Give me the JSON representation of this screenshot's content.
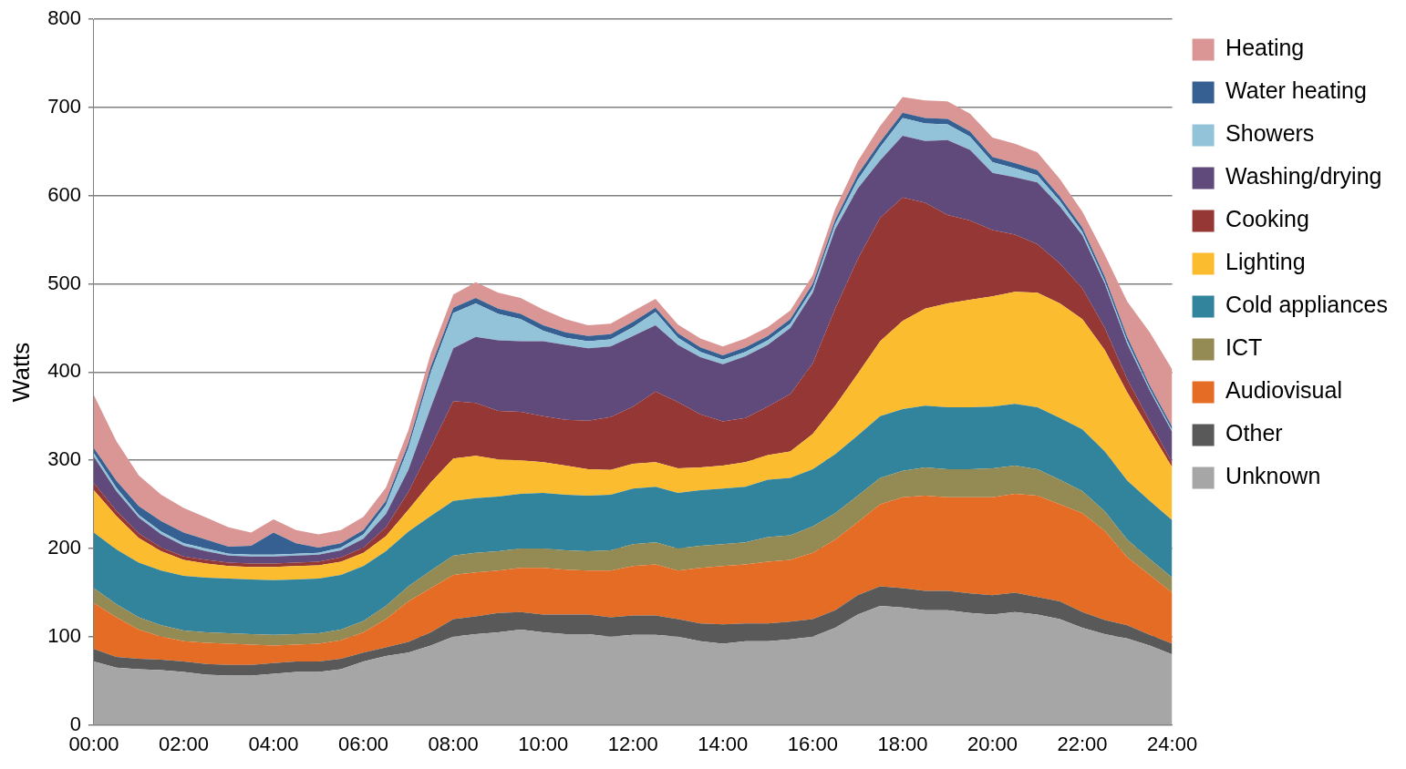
{
  "chart_data": {
    "type": "area",
    "stacked": true,
    "grid": true,
    "legend": "right",
    "y_label": "Watts",
    "ylim": [
      0,
      800
    ],
    "yticks": [
      0,
      100,
      200,
      300,
      400,
      500,
      600,
      700,
      800
    ],
    "categories": [
      "00:00",
      null,
      null,
      null,
      "02:00",
      null,
      null,
      null,
      "04:00",
      null,
      null,
      null,
      "06:00",
      null,
      null,
      null,
      "08:00",
      null,
      null,
      null,
      "10:00",
      null,
      null,
      null,
      "12:00",
      null,
      null,
      null,
      "14:00",
      null,
      null,
      null,
      "16:00",
      null,
      null,
      null,
      "18:00",
      null,
      null,
      null,
      "20:00",
      null,
      null,
      null,
      "22:00",
      null,
      null,
      null,
      "24:00"
    ],
    "series": [
      {
        "name": "Unknown",
        "color": "#a6a6a6",
        "values": [
          72,
          65,
          63,
          62,
          60,
          57,
          56,
          56,
          58,
          60,
          60,
          63,
          72,
          78,
          82,
          90,
          100,
          103,
          105,
          108,
          105,
          103,
          103,
          100,
          102,
          102,
          100,
          95,
          92,
          95,
          95,
          97,
          100,
          110,
          125,
          135,
          133,
          130,
          130,
          127,
          125,
          128,
          125,
          120,
          110,
          103,
          98,
          90,
          80
        ]
      },
      {
        "name": "Other",
        "color": "#595959",
        "values": [
          14,
          12,
          12,
          12,
          12,
          12,
          12,
          12,
          12,
          12,
          12,
          12,
          10,
          10,
          12,
          15,
          20,
          20,
          22,
          20,
          20,
          22,
          22,
          22,
          22,
          22,
          20,
          20,
          22,
          20,
          20,
          20,
          20,
          20,
          22,
          22,
          22,
          22,
          22,
          22,
          22,
          22,
          20,
          20,
          18,
          16,
          15,
          12,
          12
        ]
      },
      {
        "name": "Audiovisual",
        "color": "#e46c24",
        "values": [
          52,
          45,
          33,
          26,
          23,
          24,
          24,
          23,
          20,
          19,
          20,
          21,
          23,
          32,
          46,
          50,
          50,
          50,
          48,
          50,
          53,
          51,
          50,
          53,
          56,
          58,
          55,
          63,
          66,
          67,
          70,
          70,
          75,
          80,
          83,
          93,
          103,
          108,
          106,
          109,
          111,
          112,
          115,
          110,
          112,
          101,
          77,
          68,
          58
        ]
      },
      {
        "name": "ICT",
        "color": "#948a54",
        "values": [
          17,
          15,
          14,
          13,
          12,
          12,
          12,
          12,
          12,
          12,
          12,
          12,
          13,
          15,
          17,
          20,
          22,
          22,
          22,
          22,
          22,
          22,
          22,
          23,
          25,
          25,
          25,
          25,
          25,
          25,
          28,
          28,
          30,
          30,
          30,
          30,
          30,
          32,
          32,
          32,
          33,
          32,
          30,
          28,
          25,
          22,
          20,
          18,
          17
        ]
      },
      {
        "name": "Cold appliances",
        "color": "#31849b",
        "values": [
          63,
          62,
          62,
          62,
          62,
          62,
          62,
          62,
          62,
          62,
          62,
          62,
          62,
          62,
          62,
          62,
          62,
          62,
          62,
          62,
          63,
          63,
          63,
          63,
          63,
          63,
          63,
          63,
          63,
          63,
          65,
          65,
          65,
          67,
          68,
          70,
          70,
          70,
          70,
          70,
          70,
          70,
          70,
          70,
          70,
          68,
          67,
          66,
          65
        ]
      },
      {
        "name": "Lighting",
        "color": "#fbbc2f",
        "values": [
          48,
          38,
          28,
          22,
          18,
          16,
          14,
          14,
          15,
          15,
          15,
          15,
          15,
          17,
          25,
          38,
          48,
          48,
          42,
          38,
          35,
          33,
          30,
          28,
          28,
          28,
          28,
          26,
          26,
          28,
          28,
          30,
          40,
          55,
          70,
          85,
          100,
          110,
          118,
          122,
          125,
          127,
          130,
          130,
          125,
          115,
          100,
          80,
          60
        ]
      },
      {
        "name": "Cooking",
        "color": "#953735",
        "values": [
          8,
          6,
          5,
          4,
          4,
          4,
          4,
          4,
          4,
          4,
          4,
          5,
          6,
          10,
          20,
          40,
          65,
          60,
          55,
          55,
          52,
          52,
          55,
          60,
          65,
          80,
          75,
          60,
          50,
          50,
          55,
          65,
          80,
          110,
          130,
          140,
          140,
          120,
          100,
          90,
          75,
          65,
          55,
          45,
          35,
          25,
          15,
          10,
          5
        ]
      },
      {
        "name": "Washing/drying",
        "color": "#604a7b",
        "values": [
          30,
          22,
          18,
          15,
          12,
          10,
          8,
          8,
          8,
          8,
          8,
          8,
          10,
          15,
          25,
          45,
          60,
          75,
          80,
          80,
          85,
          85,
          82,
          80,
          80,
          75,
          65,
          65,
          65,
          70,
          70,
          75,
          80,
          90,
          80,
          65,
          70,
          70,
          85,
          80,
          65,
          65,
          70,
          65,
          60,
          50,
          40,
          35,
          35
        ]
      },
      {
        "name": "Showers",
        "color": "#93c3d9",
        "values": [
          4,
          4,
          3,
          3,
          3,
          3,
          2,
          2,
          2,
          2,
          2,
          3,
          5,
          10,
          25,
          40,
          40,
          38,
          30,
          25,
          12,
          8,
          8,
          8,
          10,
          15,
          8,
          6,
          5,
          5,
          5,
          5,
          5,
          6,
          10,
          15,
          20,
          20,
          18,
          15,
          12,
          10,
          8,
          6,
          4,
          3,
          3,
          2,
          2
        ]
      },
      {
        "name": "Water heating",
        "color": "#366092",
        "values": [
          6,
          8,
          10,
          12,
          12,
          10,
          8,
          10,
          25,
          12,
          6,
          5,
          5,
          5,
          5,
          6,
          6,
          6,
          6,
          6,
          6,
          6,
          6,
          6,
          6,
          5,
          5,
          5,
          5,
          5,
          5,
          5,
          5,
          5,
          6,
          6,
          6,
          6,
          6,
          6,
          6,
          6,
          6,
          5,
          5,
          5,
          5,
          4,
          4
        ]
      },
      {
        "name": "Heating",
        "color": "#d99694",
        "values": [
          60,
          45,
          35,
          30,
          28,
          25,
          22,
          15,
          15,
          15,
          15,
          15,
          15,
          15,
          15,
          15,
          15,
          18,
          18,
          18,
          18,
          15,
          12,
          12,
          12,
          10,
          10,
          10,
          10,
          10,
          10,
          10,
          10,
          12,
          15,
          18,
          18,
          20,
          20,
          20,
          22,
          22,
          20,
          20,
          18,
          25,
          40,
          60,
          65
        ]
      }
    ]
  }
}
